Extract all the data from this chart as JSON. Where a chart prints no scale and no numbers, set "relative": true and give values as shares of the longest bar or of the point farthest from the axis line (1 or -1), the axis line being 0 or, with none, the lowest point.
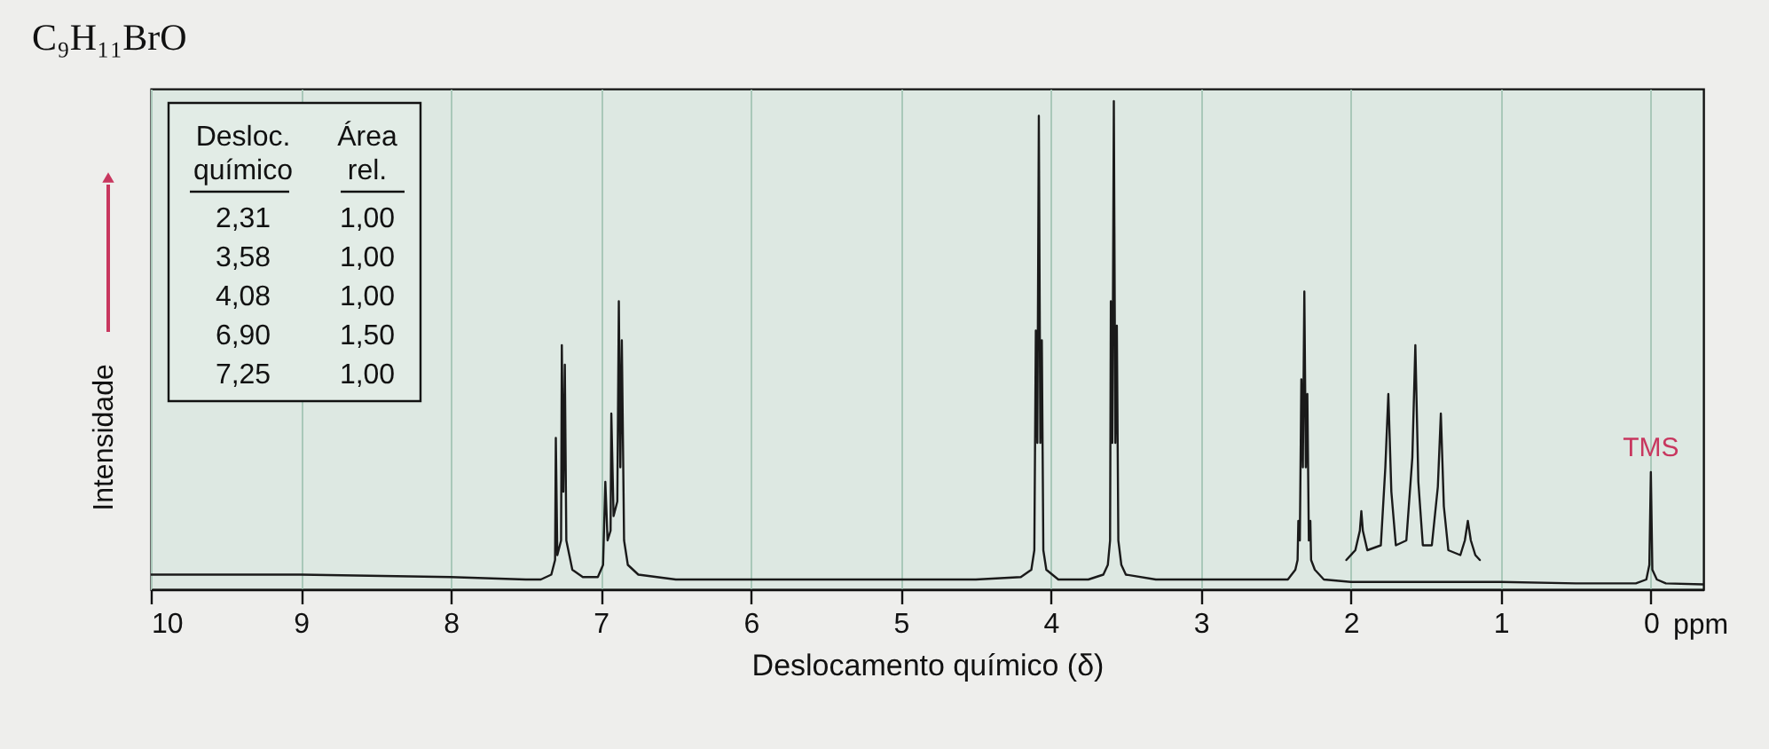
{
  "chart_data": {
    "type": "line",
    "title": "C₉H₁₁BrO",
    "xlabel": "Deslocamento químico (δ)",
    "ylabel": "Intensidade",
    "relative": true,
    "xlim": [
      10,
      -0.35
    ],
    "xticks": [
      10,
      9,
      8,
      7,
      6,
      5,
      4,
      3,
      2,
      1,
      0
    ],
    "grid": "x",
    "line_style": "solid",
    "series": [
      {
        "color": "#1a1a1a",
        "x": [
          10,
          9,
          8,
          7.5,
          7.4,
          7.33,
          7.305,
          7.3,
          7.29,
          7.265,
          7.26,
          7.25,
          7.24,
          7.23,
          7.21,
          7.19,
          7.12,
          7.02,
          6.985,
          6.97,
          6.955,
          6.935,
          6.93,
          6.915,
          6.89,
          6.88,
          6.87,
          6.86,
          6.845,
          6.82,
          6.75,
          6.5,
          6,
          5,
          4.5,
          4.2,
          4.13,
          4.11,
          4.1,
          4.09,
          4.08,
          4.07,
          4.06,
          4.05,
          4.03,
          3.95,
          3.75,
          3.65,
          3.62,
          3.605,
          3.6,
          3.59,
          3.58,
          3.57,
          3.56,
          3.55,
          3.53,
          3.5,
          3.3,
          3,
          2.6,
          2.42,
          2.37,
          2.355,
          2.35,
          2.34,
          2.33,
          2.32,
          2.31,
          2.3,
          2.29,
          2.28,
          2.27,
          2.265,
          2.24,
          2.18,
          2,
          1.5,
          1,
          0.5,
          0.1,
          0.03,
          0.01,
          0,
          -0.01,
          -0.04,
          -0.1,
          -0.35
        ],
        "values": [
          0.03,
          0.03,
          0.025,
          0.02,
          0.02,
          0.03,
          0.06,
          0.31,
          0.07,
          0.1,
          0.5,
          0.2,
          0.46,
          0.1,
          0.07,
          0.04,
          0.025,
          0.025,
          0.05,
          0.22,
          0.1,
          0.12,
          0.36,
          0.15,
          0.18,
          0.59,
          0.25,
          0.51,
          0.1,
          0.05,
          0.03,
          0.02,
          0.02,
          0.02,
          0.02,
          0.025,
          0.04,
          0.08,
          0.53,
          0.3,
          0.97,
          0.3,
          0.51,
          0.08,
          0.04,
          0.02,
          0.02,
          0.03,
          0.05,
          0.1,
          0.59,
          0.3,
          1.0,
          0.3,
          0.54,
          0.1,
          0.05,
          0.03,
          0.02,
          0.02,
          0.02,
          0.02,
          0.04,
          0.06,
          0.14,
          0.1,
          0.43,
          0.25,
          0.61,
          0.25,
          0.4,
          0.1,
          0.14,
          0.06,
          0.04,
          0.02,
          0.015,
          0.015,
          0.015,
          0.012,
          0.012,
          0.02,
          0.05,
          0.24,
          0.04,
          0.02,
          0.012,
          0.01
        ]
      },
      {
        "color": "#1a1a1a",
        "x": [
          2.03,
          1.97,
          1.94,
          1.93,
          1.92,
          1.89,
          1.8,
          1.77,
          1.75,
          1.73,
          1.7,
          1.63,
          1.59,
          1.57,
          1.55,
          1.52,
          1.46,
          1.42,
          1.4,
          1.38,
          1.35,
          1.27,
          1.24,
          1.22,
          1.2,
          1.17,
          1.14
        ],
        "values": [
          0.06,
          0.08,
          0.12,
          0.16,
          0.12,
          0.08,
          0.09,
          0.25,
          0.4,
          0.2,
          0.09,
          0.1,
          0.27,
          0.5,
          0.22,
          0.09,
          0.09,
          0.21,
          0.36,
          0.17,
          0.08,
          0.07,
          0.1,
          0.14,
          0.1,
          0.07,
          0.06
        ]
      }
    ],
    "annotations": [
      "Desloc. químico",
      "Área rel.",
      "2,31",
      "1,00",
      "3,58",
      "1,00",
      "4,08",
      "1,00",
      "6,90",
      "1,50",
      "7,25",
      "1,00",
      {
        "text": "TMS",
        "x": 0,
        "y": 0.24
      },
      "ppm"
    ]
  }
}
